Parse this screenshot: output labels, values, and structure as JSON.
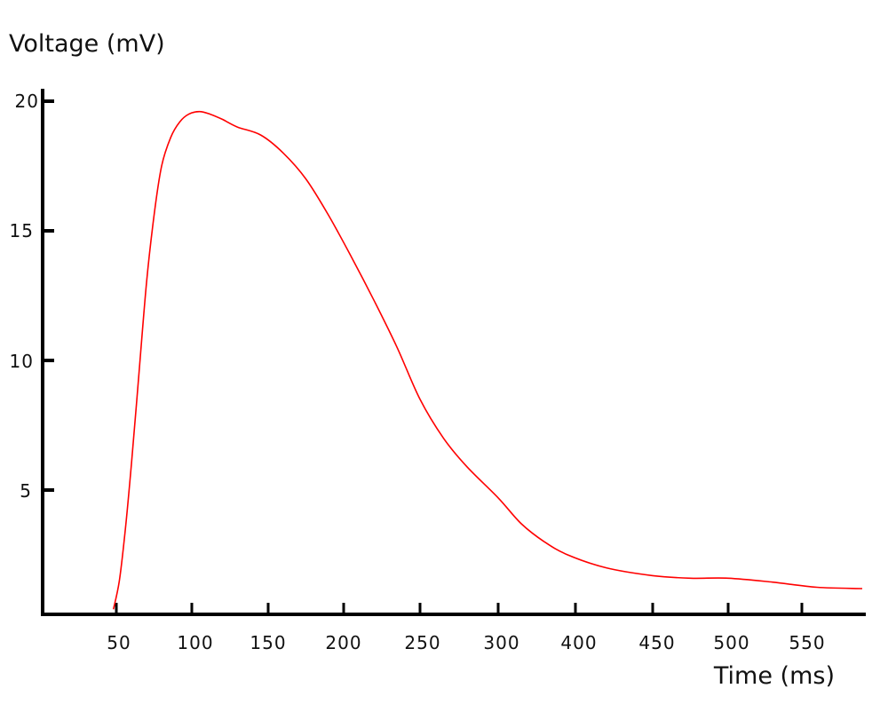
{
  "chart_data": {
    "type": "line",
    "title": "",
    "ylabel": "Voltage (mV)",
    "xlabel": "Time (ms)",
    "ylim": [
      0,
      21
    ],
    "yticks": [
      "5",
      "10",
      "15",
      "20"
    ],
    "xticks": [
      "50",
      "100",
      "150",
      "200",
      "250",
      "300",
      "400",
      "450",
      "500",
      "550"
    ],
    "grid": false,
    "series": [
      {
        "color": "#ff0000",
        "x": [
          48,
          52,
          56,
          60,
          65,
          70,
          75,
          80,
          86,
          92,
          98,
          105,
          112,
          120,
          130,
          145,
          160,
          175,
          190,
          205,
          220,
          235,
          250,
          265,
          280,
          300,
          330,
          360,
          390,
          420,
          450,
          475,
          500,
          530,
          560,
          590
        ],
        "y": [
          0.4,
          1.5,
          3.5,
          6.0,
          9.5,
          13.0,
          15.6,
          17.5,
          18.6,
          19.2,
          19.5,
          19.6,
          19.5,
          19.3,
          19.0,
          18.7,
          18.0,
          17.0,
          15.6,
          14.0,
          12.3,
          10.5,
          8.5,
          7.0,
          5.9,
          4.7,
          3.7,
          3.0,
          2.5,
          2.0,
          1.7,
          1.6,
          1.6,
          1.45,
          1.25,
          1.2
        ]
      }
    ]
  }
}
